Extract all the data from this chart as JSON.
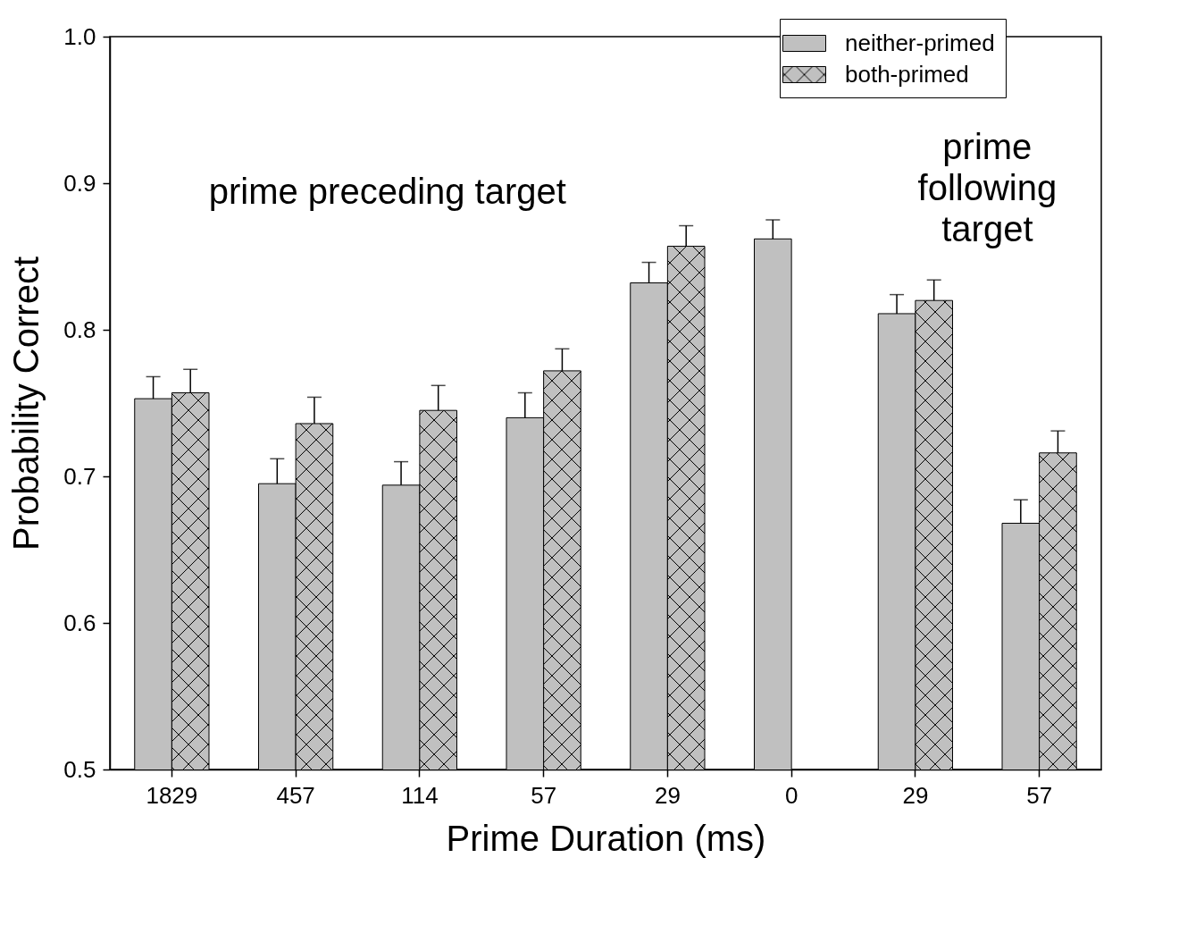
{
  "chart_data": {
    "type": "bar",
    "xlabel": "Prime Duration (ms)",
    "ylabel": "Probability Correct",
    "categories": [
      "1829",
      "457",
      "114",
      "57",
      "29",
      "0",
      "29",
      "57"
    ],
    "series": [
      {
        "name": "neither-primed",
        "color": "#c0c0c0",
        "values": [
          0.753,
          0.695,
          0.694,
          0.74,
          0.832,
          0.862,
          0.811,
          0.668
        ],
        "errors": [
          [
            0.753,
            0.768
          ],
          [
            0.695,
            0.712
          ],
          [
            0.694,
            0.71
          ],
          [
            0.74,
            0.757
          ],
          [
            0.832,
            0.846
          ],
          [
            0.862,
            0.875
          ],
          [
            0.811,
            0.824
          ],
          [
            0.668,
            0.684
          ]
        ]
      },
      {
        "name": "both-primed",
        "color": "#c0c0c0",
        "values": [
          0.757,
          0.736,
          0.745,
          0.772,
          0.857,
          null,
          0.82,
          0.716
        ],
        "errors": [
          [
            0.757,
            0.773
          ],
          [
            0.736,
            0.754
          ],
          [
            0.745,
            0.762
          ],
          [
            0.772,
            0.787
          ],
          [
            0.857,
            0.871
          ],
          null,
          [
            0.82,
            0.834
          ],
          [
            0.716,
            0.731
          ]
        ]
      }
    ],
    "ylim": [
      0.5,
      1.0
    ],
    "yticks": [
      0.5,
      0.6,
      0.7,
      0.8,
      0.9,
      {
        "value": 1.0,
        "label": "1.0"
      }
    ],
    "grid": false,
    "legend": "top right",
    "annotations": [
      "prime preceding target",
      "prime\nfollowing\ntarget"
    ]
  }
}
